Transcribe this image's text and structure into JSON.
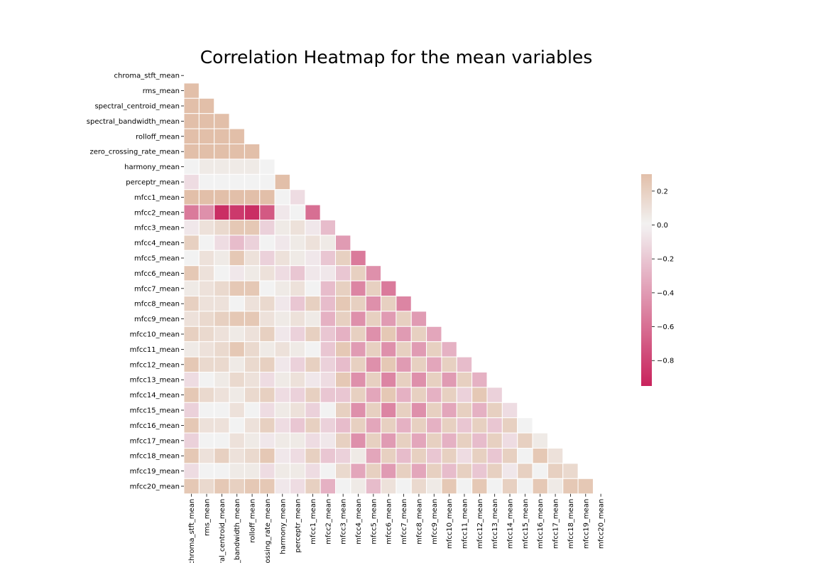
{
  "chart_data": {
    "type": "heatmap",
    "title": "Correlation Heatmap for the mean variables",
    "mask": "upper-triangle-including-diagonal",
    "variables": [
      "chroma_stft_mean",
      "rms_mean",
      "spectral_centroid_mean",
      "spectral_bandwidth_mean",
      "rolloff_mean",
      "zero_crossing_rate_mean",
      "harmony_mean",
      "perceptr_mean",
      "mfcc1_mean",
      "mfcc2_mean",
      "mfcc3_mean",
      "mfcc4_mean",
      "mfcc5_mean",
      "mfcc6_mean",
      "mfcc7_mean",
      "mfcc8_mean",
      "mfcc9_mean",
      "mfcc10_mean",
      "mfcc11_mean",
      "mfcc12_mean",
      "mfcc13_mean",
      "mfcc14_mean",
      "mfcc15_mean",
      "mfcc16_mean",
      "mfcc17_mean",
      "mfcc18_mean",
      "mfcc19_mean",
      "mfcc20_mean"
    ],
    "x_tick_labels": [
      "chroma_stft_mean",
      "rms_mean",
      "ral_centroid_mean",
      "_bandwidth_mean",
      "rolloff_mean",
      "ossing_rate_mean",
      "harmony_mean",
      "perceptr_mean",
      "mfcc1_mean",
      "mfcc2_mean",
      "mfcc3_mean",
      "mfcc4_mean",
      "mfcc5_mean",
      "mfcc6_mean",
      "mfcc7_mean",
      "mfcc8_mean",
      "mfcc9_mean",
      "mfcc10_mean",
      "mfcc11_mean",
      "mfcc12_mean",
      "mfcc13_mean",
      "mfcc14_mean",
      "mfcc15_mean",
      "mfcc16_mean",
      "mfcc17_mean",
      "mfcc18_mean",
      "mfcc19_mean",
      "mfcc20_mean"
    ],
    "lower_triangle_values": [
      [],
      [
        0.55
      ],
      [
        0.5,
        0.55
      ],
      [
        0.5,
        0.45,
        0.8
      ],
      [
        0.55,
        0.5,
        0.85,
        0.9
      ],
      [
        0.55,
        0.5,
        0.7,
        0.6,
        0.75
      ],
      [
        0.0,
        0.05,
        0.05,
        0.05,
        0.05,
        0.0
      ],
      [
        -0.1,
        0.0,
        0.0,
        0.0,
        0.0,
        0.0,
        0.3
      ],
      [
        0.5,
        0.45,
        0.6,
        0.55,
        0.6,
        0.5,
        0.0,
        -0.1
      ],
      [
        -0.55,
        -0.45,
        -0.9,
        -0.85,
        -0.9,
        -0.7,
        -0.05,
        0.0,
        -0.6
      ],
      [
        -0.05,
        0.1,
        0.15,
        0.25,
        0.25,
        -0.15,
        0.05,
        0.1,
        -0.05,
        -0.25
      ],
      [
        0.2,
        0.0,
        -0.1,
        -0.25,
        -0.15,
        0.0,
        -0.05,
        0.05,
        0.1,
        0.05,
        -0.4
      ],
      [
        0.0,
        0.1,
        0.05,
        0.25,
        0.1,
        -0.15,
        0.1,
        0.05,
        -0.05,
        -0.2,
        0.2,
        -0.55
      ],
      [
        0.25,
        0.1,
        0.0,
        -0.05,
        0.05,
        0.1,
        -0.1,
        -0.2,
        -0.05,
        -0.05,
        -0.2,
        0.2,
        -0.45
      ],
      [
        0.05,
        0.1,
        0.15,
        0.25,
        0.25,
        0.0,
        0.05,
        0.1,
        0.0,
        -0.25,
        0.2,
        -0.5,
        0.2,
        -0.55
      ],
      [
        0.2,
        0.1,
        0.1,
        0.0,
        0.1,
        0.15,
        -0.05,
        -0.2,
        0.2,
        -0.25,
        0.25,
        0.2,
        -0.45,
        0.2,
        -0.5
      ],
      [
        0.1,
        0.15,
        0.2,
        0.25,
        0.25,
        0.1,
        0.05,
        0.1,
        0.05,
        -0.3,
        0.2,
        -0.45,
        0.2,
        -0.4,
        0.2,
        -0.4
      ],
      [
        0.2,
        0.15,
        0.1,
        0.05,
        0.1,
        0.2,
        -0.05,
        -0.15,
        0.2,
        -0.2,
        -0.3,
        0.2,
        -0.45,
        0.25,
        -0.4,
        0.2,
        -0.35
      ],
      [
        0.05,
        0.1,
        0.15,
        0.25,
        0.15,
        0.05,
        0.1,
        0.05,
        0.0,
        -0.2,
        0.25,
        -0.4,
        0.2,
        -0.45,
        0.2,
        -0.4,
        0.2,
        -0.3
      ],
      [
        0.25,
        0.15,
        0.15,
        0.05,
        0.15,
        0.2,
        -0.05,
        -0.15,
        0.2,
        -0.15,
        -0.25,
        0.2,
        -0.45,
        0.25,
        -0.4,
        0.2,
        -0.35,
        0.2,
        -0.25
      ],
      [
        -0.1,
        0.0,
        0.05,
        0.15,
        0.1,
        -0.1,
        0.05,
        0.1,
        -0.05,
        -0.1,
        0.25,
        -0.45,
        0.2,
        -0.5,
        0.2,
        -0.45,
        0.2,
        -0.4,
        0.2,
        -0.3
      ],
      [
        0.25,
        0.15,
        0.1,
        0.05,
        0.15,
        0.2,
        -0.1,
        -0.15,
        0.2,
        -0.2,
        -0.2,
        0.2,
        -0.35,
        0.25,
        -0.3,
        0.2,
        -0.3,
        0.2,
        -0.15,
        0.25,
        -0.15
      ],
      [
        -0.15,
        0.0,
        0.0,
        0.1,
        0.0,
        -0.1,
        0.05,
        0.1,
        -0.15,
        0.0,
        0.2,
        -0.45,
        0.2,
        -0.5,
        0.2,
        -0.45,
        0.2,
        -0.35,
        0.2,
        -0.3,
        0.2,
        -0.1
      ],
      [
        0.25,
        0.1,
        0.1,
        0.0,
        0.1,
        0.2,
        -0.1,
        -0.2,
        0.2,
        -0.15,
        -0.25,
        0.2,
        -0.35,
        0.2,
        -0.3,
        0.2,
        -0.3,
        0.2,
        -0.2,
        0.2,
        -0.2,
        0.2,
        0.0
      ],
      [
        -0.15,
        0.0,
        0.0,
        0.1,
        0.05,
        -0.05,
        0.05,
        0.05,
        -0.1,
        -0.05,
        0.2,
        -0.45,
        0.2,
        -0.4,
        0.2,
        -0.35,
        0.2,
        -0.3,
        0.2,
        -0.25,
        0.2,
        -0.1,
        0.2,
        0.05
      ],
      [
        0.25,
        0.1,
        0.2,
        0.1,
        0.15,
        0.25,
        -0.05,
        -0.1,
        0.2,
        -0.2,
        -0.15,
        0.05,
        -0.35,
        0.2,
        -0.25,
        0.2,
        -0.2,
        0.2,
        -0.1,
        0.2,
        -0.2,
        0.2,
        0.0,
        0.25,
        0.1
      ],
      [
        -0.1,
        0.0,
        0.0,
        0.05,
        0.05,
        -0.1,
        0.05,
        0.05,
        -0.1,
        0.0,
        0.15,
        -0.35,
        0.2,
        -0.4,
        0.2,
        -0.35,
        0.2,
        -0.25,
        0.2,
        -0.2,
        0.2,
        -0.05,
        0.2,
        0.0,
        0.2,
        0.15
      ],
      [
        0.25,
        0.15,
        0.25,
        0.2,
        0.25,
        0.25,
        -0.05,
        -0.1,
        0.2,
        -0.3,
        0.0,
        0.05,
        -0.25,
        0.1,
        0.0,
        0.15,
        0.05,
        0.25,
        0.0,
        0.25,
        0.0,
        0.2,
        0.0,
        0.25,
        0.05,
        0.25,
        0.25
      ]
    ],
    "colormap": {
      "min": -0.95,
      "max": 0.3,
      "center": 0.0,
      "negative_color": "#c8235c",
      "center_color": "#f2f2f2",
      "positive_color": "#e2bfa9"
    },
    "colorbar": {
      "ticks": [
        0.2,
        0.0,
        -0.2,
        -0.4,
        -0.6,
        -0.8
      ],
      "tick_labels": [
        "0.2",
        "0.0",
        "−0.2",
        "−0.4",
        "−0.6",
        "−0.8"
      ]
    },
    "grid": false,
    "cell_border_color": "#ffffff"
  }
}
